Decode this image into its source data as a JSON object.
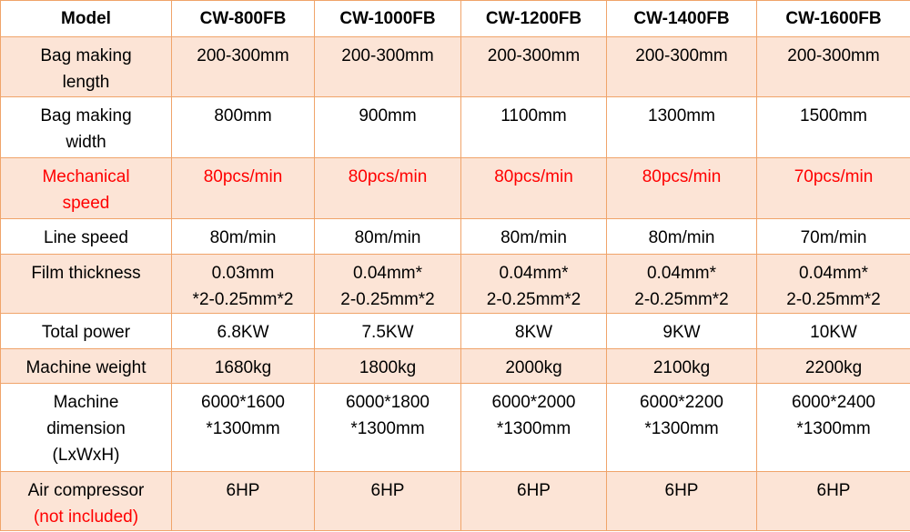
{
  "table": {
    "header": [
      "Model",
      "CW-800FB",
      "CW-1000FB",
      "CW-1200FB",
      "CW-1400FB",
      "CW-1600FB"
    ],
    "rows": [
      [
        [
          "Bag making",
          "length"
        ],
        [
          "200-300mm"
        ],
        [
          "200-300mm"
        ],
        [
          "200-300mm"
        ],
        [
          "200-300mm"
        ],
        [
          "200-300mm"
        ]
      ],
      [
        [
          "Bag making",
          "width"
        ],
        [
          "800mm"
        ],
        [
          "900mm"
        ],
        [
          "1100mm"
        ],
        [
          "1300mm"
        ],
        [
          "1500mm"
        ]
      ],
      [
        [
          "Mechanical",
          "speed"
        ],
        [
          "80pcs/min"
        ],
        [
          "80pcs/min"
        ],
        [
          "80pcs/min"
        ],
        [
          "80pcs/min"
        ],
        [
          "70pcs/min"
        ]
      ],
      [
        [
          "Line speed"
        ],
        [
          "80m/min"
        ],
        [
          "80m/min"
        ],
        [
          "80m/min"
        ],
        [
          "80m/min"
        ],
        [
          "70m/min"
        ]
      ],
      [
        [
          "Film thickness"
        ],
        [
          "0.03mm",
          "*2-0.25mm*2"
        ],
        [
          "0.04mm*",
          "2-0.25mm*2"
        ],
        [
          "0.04mm*",
          "2-0.25mm*2"
        ],
        [
          "0.04mm*",
          "2-0.25mm*2"
        ],
        [
          "0.04mm*",
          "2-0.25mm*2"
        ]
      ],
      [
        [
          "Total power"
        ],
        [
          "6.8KW"
        ],
        [
          "7.5KW"
        ],
        [
          "8KW"
        ],
        [
          "9KW"
        ],
        [
          "10KW"
        ]
      ],
      [
        [
          "Machine weight"
        ],
        [
          "1680kg"
        ],
        [
          "1800kg"
        ],
        [
          "2000kg"
        ],
        [
          "2100kg"
        ],
        [
          "2200kg"
        ]
      ],
      [
        [
          "Machine",
          "dimension",
          "(LxWxH)"
        ],
        [
          "6000*1600",
          "*1300mm"
        ],
        [
          "6000*1800",
          "*1300mm"
        ],
        [
          "6000*2000",
          "*1300mm"
        ],
        [
          "6000*2200",
          "*1300mm"
        ],
        [
          "6000*2400",
          "*1300mm"
        ]
      ],
      [
        [
          "Air compressor",
          "(not included)"
        ],
        [
          "6HP"
        ],
        [
          "6HP"
        ],
        [
          "6HP"
        ],
        [
          "6HP"
        ],
        [
          "6HP"
        ]
      ]
    ]
  }
}
